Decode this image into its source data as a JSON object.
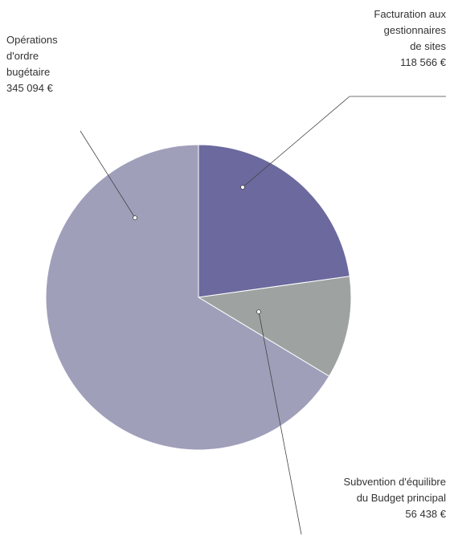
{
  "chart_data": {
    "type": "pie",
    "categories": [
      "Facturation aux gestionnaires de sites",
      "Subvention d'équilibre du Budget principal",
      "Opérations d'ordre bugétaire"
    ],
    "values": [
      118566,
      56438,
      345094
    ],
    "value_labels": [
      "118 566 €",
      "56 438 €",
      "345 094 €"
    ],
    "colors": [
      "#6b699d",
      "#9ea3a2",
      "#a09fba"
    ]
  }
}
